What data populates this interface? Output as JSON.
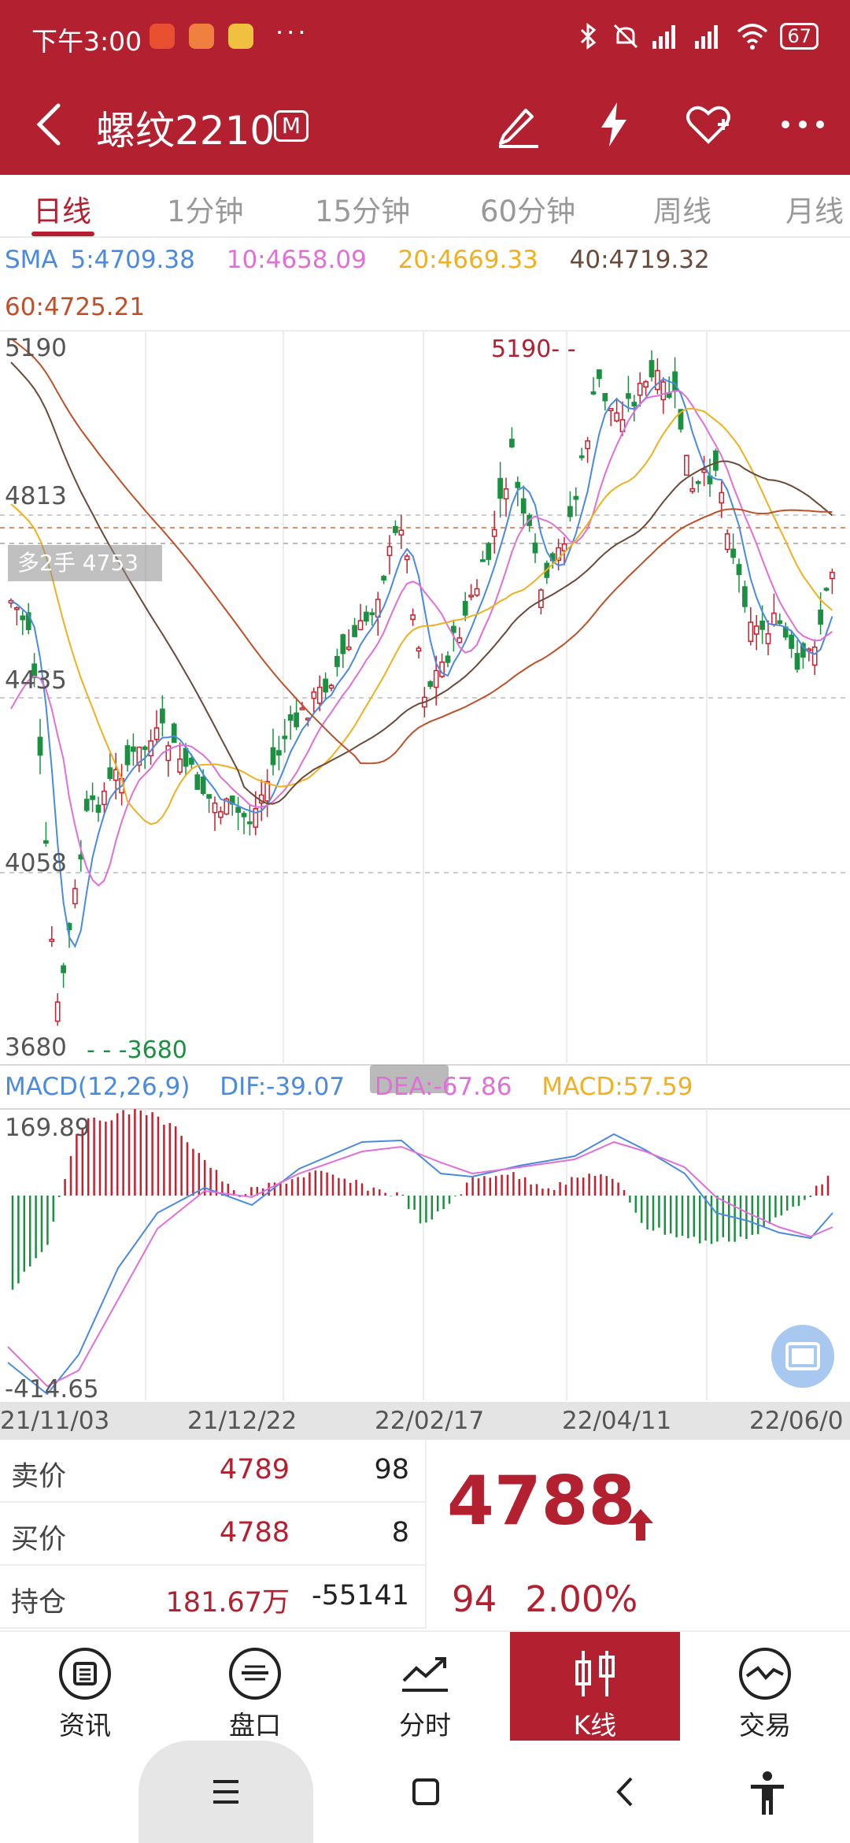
{
  "status_bar": {
    "time": "下午3:00",
    "more": "···",
    "battery": "67"
  },
  "header": {
    "title": "螺纹2210",
    "badge": "M"
  },
  "tabs": [
    "日线",
    "1分钟",
    "15分钟",
    "60分钟",
    "周线",
    "月线"
  ],
  "sma": {
    "label": "SMA",
    "values": [
      "5:4709.38",
      "10:4658.09",
      "20:4669.33",
      "40:4719.32",
      "60:4725.21"
    ],
    "colors": [
      "#4a8ae0",
      "#e070d8",
      "#f0b020",
      "#6b4a3a",
      "#c0502a"
    ]
  },
  "chart": {
    "y_labels": [
      "5190",
      "4813",
      "4435",
      "4058",
      "3680"
    ],
    "position_box": "多2手 4753",
    "high_marker": "5190- -",
    "low_marker": "- - -3680"
  },
  "macd": {
    "title": "MACD(12,26,9)",
    "dif": "DIF:-39.07",
    "dea": "DEA:-67.86",
    "macd": "MACD:57.59",
    "y_max": "169.89",
    "y_min": "-414.65"
  },
  "dates": [
    "21/11/03",
    "21/12/22",
    "22/02/17",
    "22/04/11",
    "22/06/0"
  ],
  "quote": {
    "ask_label": "卖价",
    "ask_price": "4789",
    "ask_vol": "98",
    "bid_label": "买价",
    "bid_price": "4788",
    "bid_vol": "8",
    "oi_label": "持仓",
    "oi_value": "181.67万",
    "oi_change": "-55141",
    "last_price": "4788",
    "change": "94",
    "change_pct": "2.00%"
  },
  "bottom_nav": [
    "资讯",
    "盘口",
    "分时",
    "K线",
    "交易"
  ],
  "colors": {
    "brand": "#B32030",
    "up": "#C8202E",
    "down": "#1A9040"
  }
}
